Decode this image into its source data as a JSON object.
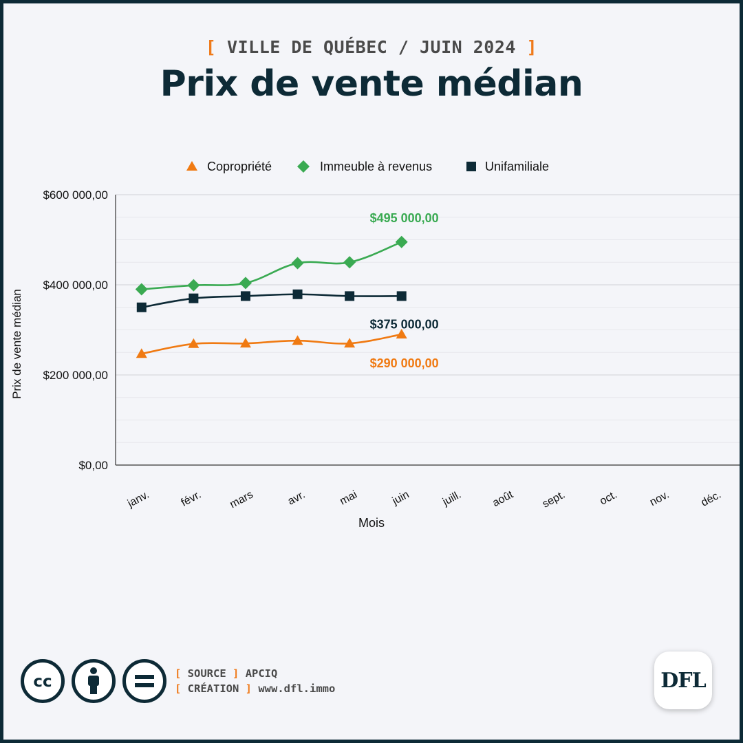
{
  "header": {
    "kicker": "VILLE DE QUÉBEC / JUIN 2024",
    "kicker_open": "[",
    "kicker_close": "]",
    "title": "Prix de vente médian"
  },
  "colors": {
    "background": "#f4f5f9",
    "frame": "#0d2a36",
    "accent": "#ef7a1a",
    "copropriete": "#f07a12",
    "immeuble": "#3aaa52",
    "unifamiliale": "#0d2a36"
  },
  "chart_data": {
    "type": "line",
    "title": "Prix de vente médian",
    "xlabel": "Mois",
    "ylabel": "Prix de vente médian",
    "categories": [
      "janv.",
      "févr.",
      "mars",
      "avr.",
      "mai",
      "juin",
      "juill.",
      "août",
      "sept.",
      "oct.",
      "nov.",
      "déc."
    ],
    "ylim": [
      0,
      600000
    ],
    "y_ticks": [
      {
        "value": 600000,
        "label": "$600 000,00"
      },
      {
        "value": 400000,
        "label": "$400 000,00"
      },
      {
        "value": 200000,
        "label": "$200 000,00"
      },
      {
        "value": 0,
        "label": "$0,00"
      }
    ],
    "y_minor_step": 50000,
    "legend_position": "top-center",
    "grid": true,
    "series": [
      {
        "name": "Copropriété",
        "marker": "triangle",
        "color": "#f07a12",
        "values": [
          247000,
          269000,
          270000,
          276000,
          270000,
          290000,
          null,
          null,
          null,
          null,
          null,
          null
        ],
        "end_label": "$290 000,00"
      },
      {
        "name": "Immeuble à revenus",
        "marker": "diamond",
        "color": "#3aaa52",
        "values": [
          390000,
          399000,
          404000,
          448000,
          450000,
          495000,
          null,
          null,
          null,
          null,
          null,
          null
        ],
        "end_label": "$495 000,00"
      },
      {
        "name": "Unifamiliale",
        "marker": "square",
        "color": "#0d2a36",
        "values": [
          350000,
          370000,
          375000,
          379000,
          375000,
          375000,
          null,
          null,
          null,
          null,
          null,
          null
        ],
        "end_label": "$375 000,00"
      }
    ]
  },
  "footer": {
    "license_icons": [
      "cc-icon",
      "by-attribution-icon",
      "nd-no-derivatives-icon"
    ],
    "source_key": "SOURCE",
    "source_value": "APCIQ",
    "creation_key": "CRÉATION",
    "creation_value": "www.dfl.immo",
    "logo_text": "DFL"
  }
}
